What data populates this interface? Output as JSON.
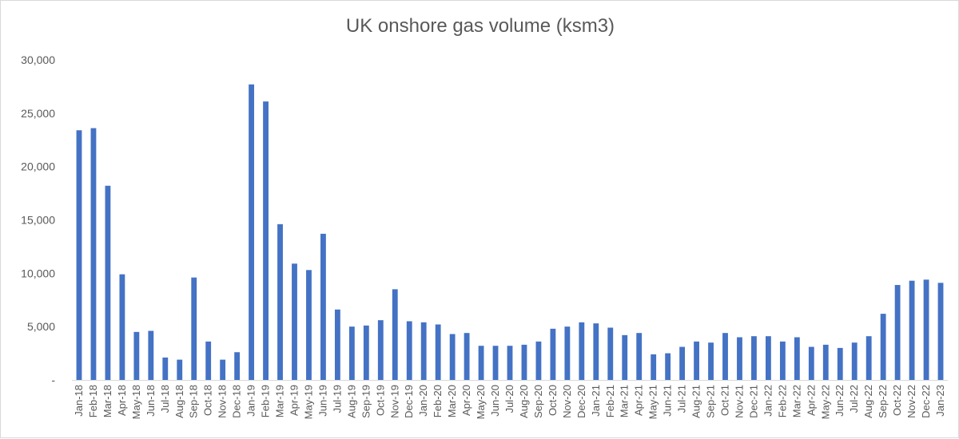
{
  "chart_data": {
    "type": "bar",
    "title": "UK onshore gas volume (ksm3)",
    "xlabel": "",
    "ylabel": "",
    "ylim": [
      0,
      30000
    ],
    "yticks": [
      {
        "value": 0,
        "label": "-"
      },
      {
        "value": 5000,
        "label": "5,000"
      },
      {
        "value": 10000,
        "label": "10,000"
      },
      {
        "value": 15000,
        "label": "15,000"
      },
      {
        "value": 20000,
        "label": "20,000"
      },
      {
        "value": 25000,
        "label": "25,000"
      },
      {
        "value": 30000,
        "label": "30,000"
      }
    ],
    "grid": false,
    "legend": "none",
    "bar_color": "#4472c4",
    "categories": [
      "Jan-18",
      "Feb-18",
      "Mar-18",
      "Apr-18",
      "May-18",
      "Jun-18",
      "Jul-18",
      "Aug-18",
      "Sep-18",
      "Oct-18",
      "Nov-18",
      "Dec-18",
      "Jan-19",
      "Feb-19",
      "Mar-19",
      "Apr-19",
      "May-19",
      "Jun-19",
      "Jul-19",
      "Aug-19",
      "Sep-19",
      "Oct-19",
      "Nov-19",
      "Dec-19",
      "Jan-20",
      "Feb-20",
      "Mar-20",
      "Apr-20",
      "May-20",
      "Jun-20",
      "Jul-20",
      "Aug-20",
      "Sep-20",
      "Oct-20",
      "Nov-20",
      "Dec-20",
      "Jan-21",
      "Feb-21",
      "Mar-21",
      "Apr-21",
      "May-21",
      "Jun-21",
      "Jul-21",
      "Aug-21",
      "Sep-21",
      "Oct-21",
      "Nov-21",
      "Dec-21",
      "Jan-22",
      "Feb-22",
      "Mar-22",
      "Apr-22",
      "May-22",
      "Jun-22",
      "Jul-22",
      "Aug-22",
      "Sep-22",
      "Oct-22",
      "Nov-22",
      "Dec-22",
      "Jan-23"
    ],
    "values": [
      23400,
      23600,
      18200,
      9900,
      4500,
      4600,
      2100,
      1900,
      9600,
      3600,
      1900,
      2600,
      27700,
      26100,
      14600,
      10900,
      10300,
      13700,
      6600,
      5000,
      5100,
      5600,
      8500,
      5500,
      5400,
      5200,
      4300,
      4400,
      3200,
      3200,
      3200,
      3300,
      3600,
      4800,
      5000,
      5400,
      5300,
      4900,
      4200,
      4400,
      2400,
      2500,
      3100,
      3600,
      3500,
      4400,
      4000,
      4100,
      4100,
      3600,
      4000,
      3100,
      3300,
      3000,
      3500,
      4100,
      6200,
      8900,
      9300,
      9400,
      9100
    ]
  }
}
